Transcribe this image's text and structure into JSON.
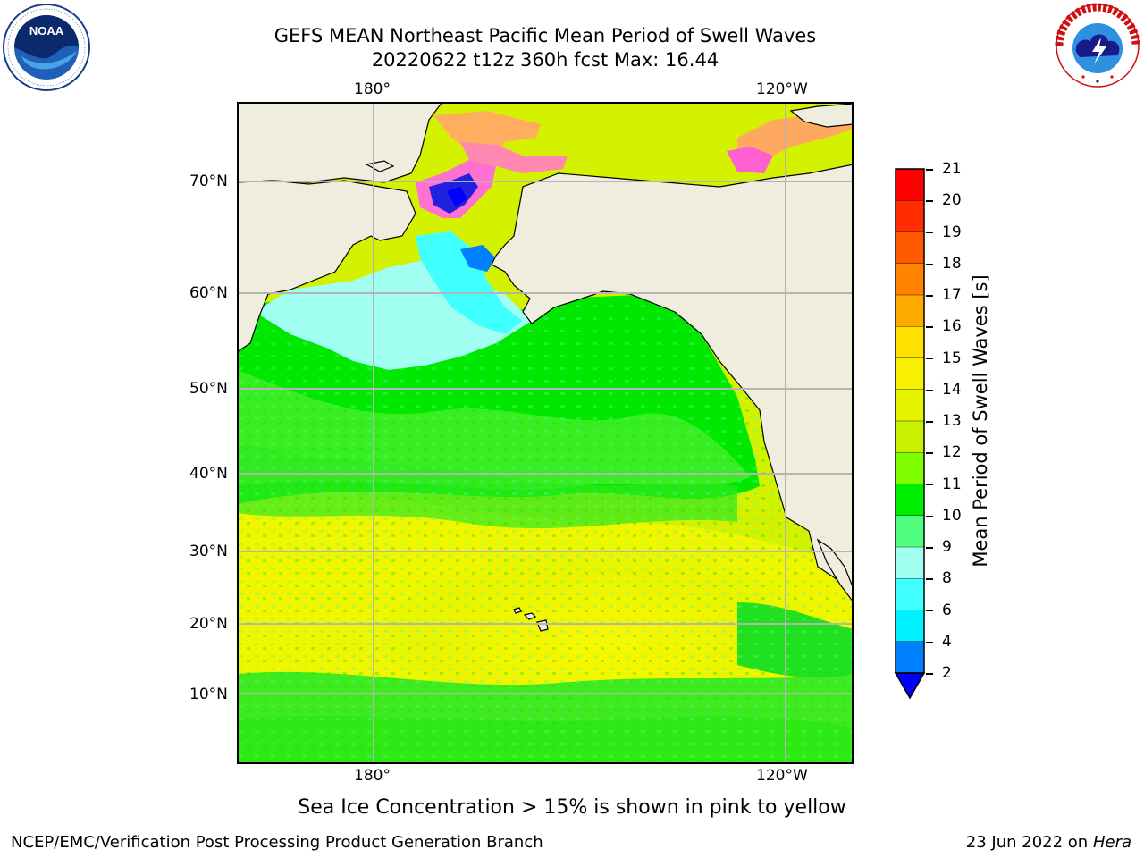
{
  "title": {
    "line1": "GEFS MEAN Northeast Pacific Mean Period of Swell Waves",
    "line2": "20220622 t12z 360h fcst   Max: 16.44"
  },
  "logos": {
    "left": {
      "name": "NOAA",
      "ring_text": "NATIONAL OCEANIC AND ATMOSPHERIC ADMINISTRATION · U.S. DEPARTMENT OF COMMERCE"
    },
    "right": {
      "name": "NATIONAL WEATHER SERVICE"
    }
  },
  "map": {
    "top_lon_labels": [
      "180°",
      "120°W"
    ],
    "bottom_lon_labels": [
      "180°",
      "120°W"
    ],
    "lat_labels": [
      "70°N",
      "60°N",
      "50°N",
      "40°N",
      "30°N",
      "20°N",
      "10°N"
    ],
    "colors": {
      "land": "#efedde",
      "grid": "#b4b4b4",
      "coast": "#000000"
    }
  },
  "colorbar": {
    "title": "Mean Period of Swell Waves [s]",
    "ticks": [
      "21",
      "20",
      "19",
      "18",
      "17",
      "16",
      "15",
      "14",
      "13",
      "12",
      "11",
      "10",
      "9",
      "8",
      "6",
      "4",
      "2"
    ],
    "colors_top_to_bottom": [
      "#ff0000",
      "#ff2d00",
      "#ff5a00",
      "#ff8200",
      "#ffaa00",
      "#ffe000",
      "#f8f000",
      "#e6f400",
      "#c8f000",
      "#80ff00",
      "#00ee00",
      "#50ff80",
      "#a0fff0",
      "#40ffff",
      "#00f0ff",
      "#0080ff"
    ],
    "under_color": "#0000ff"
  },
  "note": "Sea Ice Concentration > 15% is shown in pink to yellow",
  "footer": {
    "left": "NCEP/EMC/Verification Post Processing Product Generation Branch",
    "date": "23 Jun 2022 on",
    "host": "Hera"
  }
}
